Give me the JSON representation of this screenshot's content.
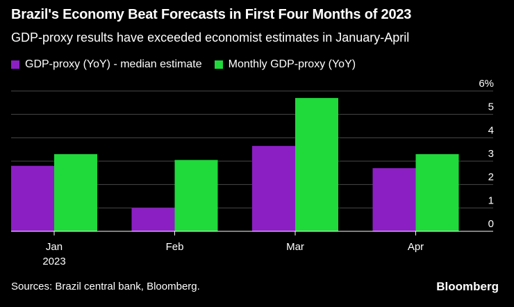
{
  "header": {
    "title": "Brazil's Economy Beat Forecasts in First Four Months of 2023",
    "subtitle": "GDP-proxy results have exceeded economist estimates in January-April"
  },
  "legend": [
    {
      "label": "GDP-proxy (YoY) - median estimate",
      "color": "#8b1fc4"
    },
    {
      "label": "Monthly GDP-proxy (YoY)",
      "color": "#20d93b"
    }
  ],
  "footer": {
    "source": "Sources: Brazil central bank, Bloomberg.",
    "brand": "Bloomberg"
  },
  "chart_data": {
    "type": "bar",
    "categories": [
      "Jan",
      "Feb",
      "Mar",
      "Apr"
    ],
    "category_sublabels": [
      "2023",
      "",
      "",
      ""
    ],
    "series": [
      {
        "name": "GDP-proxy (YoY) - median estimate",
        "values": [
          2.8,
          1.0,
          3.65,
          2.7
        ],
        "color": "#8b1fc4"
      },
      {
        "name": "Monthly GDP-proxy (YoY)",
        "values": [
          3.3,
          3.05,
          5.7,
          3.3
        ],
        "color": "#20d93b"
      }
    ],
    "yticks": [
      0,
      1,
      2,
      3,
      4,
      5,
      6
    ],
    "ytick_labels": [
      "0",
      "1",
      "2",
      "3",
      "4",
      "5",
      "6%"
    ],
    "ylim": [
      0,
      6
    ],
    "y_axis_position": "right",
    "grid": true,
    "legend_position": "top-left"
  }
}
